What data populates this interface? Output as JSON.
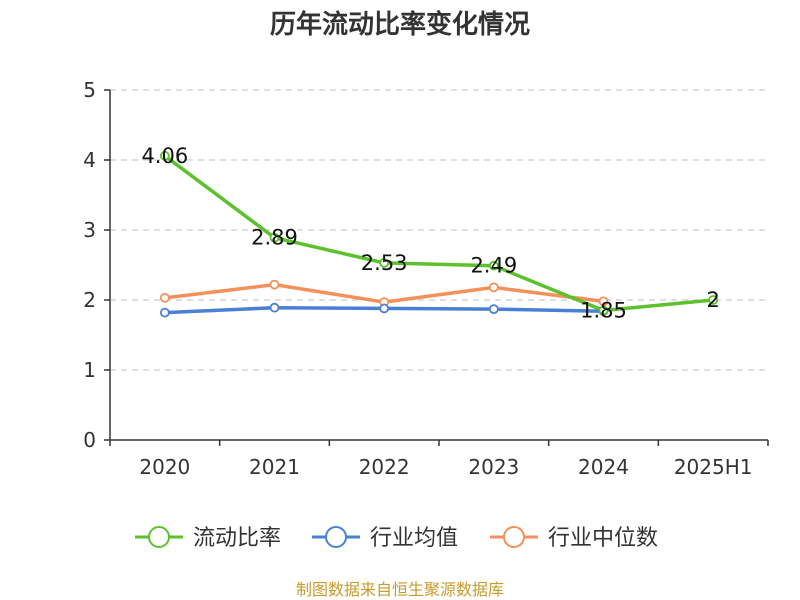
{
  "chart_data": {
    "type": "line",
    "title": "历年流动比率变化情况",
    "categories": [
      "2020",
      "2021",
      "2022",
      "2023",
      "2024",
      "2025H1"
    ],
    "ylim": [
      0,
      5
    ],
    "yticks": [
      0,
      1,
      2,
      3,
      4,
      5
    ],
    "grid": true,
    "legend_position": "bottom",
    "series": [
      {
        "name": "流动比率",
        "color": "#5cc12d",
        "values": [
          4.06,
          2.89,
          2.53,
          2.49,
          1.85,
          2
        ],
        "labels": [
          "4.06",
          "2.89",
          "2.53",
          "2.49",
          "1.85",
          "2"
        ]
      },
      {
        "name": "行业均值",
        "color": "#4a7fd6",
        "values": [
          1.82,
          1.89,
          1.88,
          1.87,
          1.84,
          null
        ],
        "labels": []
      },
      {
        "name": "行业中位数",
        "color": "#f5905a",
        "values": [
          2.03,
          2.22,
          1.97,
          2.18,
          1.98,
          null
        ],
        "labels": []
      }
    ],
    "source": "制图数据来自恒生聚源数据库"
  }
}
